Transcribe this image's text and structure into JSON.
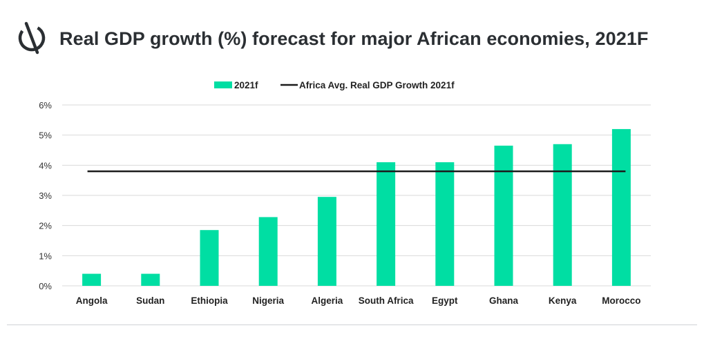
{
  "header": {
    "title": "Real GDP growth (%) forecast for major African economies, 2021F"
  },
  "colors": {
    "bar": "#00DEA3",
    "avg_line": "#1a1a1a",
    "grid": "#d9d9d9",
    "title": "#2b2f33"
  },
  "chart_data": {
    "type": "bar",
    "categories": [
      "Angola",
      "Sudan",
      "Ethiopia",
      "Nigeria",
      "Algeria",
      "South Africa",
      "Egypt",
      "Ghana",
      "Kenya",
      "Morocco"
    ],
    "series": [
      {
        "name": "2021f",
        "type": "bar",
        "values": [
          0.4,
          0.4,
          1.85,
          2.28,
          2.95,
          4.1,
          4.1,
          4.65,
          4.7,
          5.2
        ]
      },
      {
        "name": "Africa Avg. Real GDP Growth 2021f",
        "type": "line",
        "value": 3.8
      }
    ],
    "yticks": [
      "0%",
      "1%",
      "2%",
      "3%",
      "4%",
      "5%",
      "6%"
    ],
    "ylim": [
      0,
      6
    ],
    "grid": true,
    "legend": "top-center"
  }
}
